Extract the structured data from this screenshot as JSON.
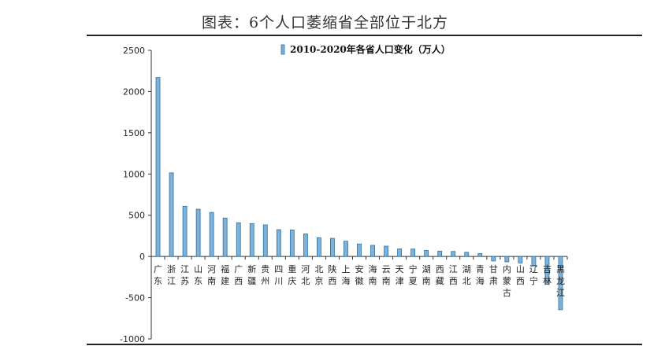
{
  "page": {
    "title": "图表：6个人口萎缩省全部位于北方"
  },
  "chart_data": {
    "type": "bar",
    "title": "",
    "legend": {
      "label": "2010-2020年各省人口变化（万人）",
      "position": "top-center"
    },
    "xlabel": "",
    "ylabel": "",
    "ylim": [
      -1000,
      2500
    ],
    "yticks": [
      -1000,
      -500,
      0,
      500,
      1000,
      1500,
      2000,
      2500
    ],
    "grid": false,
    "bar_color": "#7fb2d8",
    "bar_edge_color": "#2f6f9f",
    "categories": [
      "广东",
      "浙江",
      "江苏",
      "山东",
      "河南",
      "福建",
      "广西",
      "新疆",
      "贵州",
      "四川",
      "重庆",
      "河北",
      "北京",
      "陕西",
      "上海",
      "安徽",
      "海南",
      "云南",
      "天津",
      "宁夏",
      "湖南",
      "西藏",
      "江西",
      "湖北",
      "青海",
      "甘肃",
      "内蒙古",
      "山西",
      "辽宁",
      "吉林",
      "黑龙江"
    ],
    "values": [
      2170,
      1014,
      609,
      573,
      534,
      466,
      409,
      399,
      383,
      325,
      321,
      273,
      228,
      220,
      185,
      152,
      135,
      125,
      92,
      90,
      74,
      65,
      61,
      51,
      35,
      -55,
      -65,
      -79,
      -115,
      -338,
      -646
    ]
  }
}
